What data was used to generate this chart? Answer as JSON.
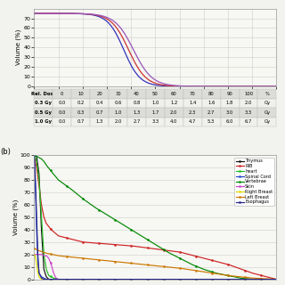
{
  "panel_a": {
    "ylabel": "Volume (%)",
    "ylim": [
      0,
      80
    ],
    "yticks": [
      0,
      10,
      20,
      30,
      40,
      50,
      60,
      70
    ],
    "xlim": [
      0,
      100
    ],
    "xticks": [
      0,
      10,
      20,
      30,
      40,
      50,
      60,
      70,
      80,
      90,
      100
    ],
    "curves": [
      {
        "color": "#3333bb",
        "midpoint": 37,
        "steep": 0.3
      },
      {
        "color": "#cc3333",
        "midpoint": 39,
        "steep": 0.28
      },
      {
        "color": "#9955bb",
        "midpoint": 41,
        "steep": 0.26
      }
    ]
  },
  "table_data": [
    [
      "Rel. Dose",
      "0",
      "10",
      "20",
      "30",
      "40",
      "50",
      "60",
      "70",
      "80",
      "90",
      "100",
      "%"
    ],
    [
      "0.3 Gy",
      "0.0",
      "0.2",
      "0.4",
      "0.6",
      "0.8",
      "1.0",
      "1.2",
      "1.4",
      "1.6",
      "1.8",
      "2.0",
      "Gy"
    ],
    [
      "0.5 Gy",
      "0.0",
      "0.3",
      "0.7",
      "1.0",
      "1.3",
      "1.7",
      "2.0",
      "2.3",
      "2.7",
      "3.0",
      "3.3",
      "Gy"
    ],
    [
      "1.0 Gy",
      "0.0",
      "0.7",
      "1.3",
      "2.0",
      "2.7",
      "3.3",
      "4.0",
      "4.7",
      "5.3",
      "6.0",
      "6.7",
      "Gy"
    ]
  ],
  "panel_b": {
    "label": "(b)",
    "ylabel": "Volume (%)",
    "ylim": [
      0,
      100
    ],
    "yticks": [
      0,
      10,
      20,
      30,
      40,
      50,
      60,
      70,
      80,
      90,
      100
    ],
    "curves": {
      "Thymus": {
        "color": "#111111",
        "points": [
          [
            0,
            100
          ],
          [
            1,
            99
          ],
          [
            2,
            85
          ],
          [
            3,
            40
          ],
          [
            4,
            8
          ],
          [
            5,
            2
          ],
          [
            6,
            0
          ],
          [
            100,
            0
          ]
        ]
      },
      "RIB": {
        "color": "#cc2222",
        "points": [
          [
            0,
            100
          ],
          [
            1,
            90
          ],
          [
            2,
            75
          ],
          [
            3,
            60
          ],
          [
            4,
            50
          ],
          [
            5,
            45
          ],
          [
            7,
            40
          ],
          [
            10,
            35
          ],
          [
            20,
            30
          ],
          [
            40,
            27
          ],
          [
            60,
            22
          ],
          [
            80,
            12
          ],
          [
            90,
            5
          ],
          [
            100,
            0
          ]
        ]
      },
      "heart": {
        "color": "#22bb22",
        "points": [
          [
            0,
            100
          ],
          [
            1,
            95
          ],
          [
            2,
            80
          ],
          [
            3,
            50
          ],
          [
            4,
            20
          ],
          [
            5,
            8
          ],
          [
            6,
            3
          ],
          [
            8,
            1
          ],
          [
            10,
            0
          ],
          [
            100,
            0
          ]
        ]
      },
      "Spinal Cord": {
        "color": "#2244cc",
        "points": [
          [
            0,
            100
          ],
          [
            0.5,
            75
          ],
          [
            1,
            40
          ],
          [
            1.5,
            15
          ],
          [
            2,
            5
          ],
          [
            3,
            2
          ],
          [
            4,
            1
          ],
          [
            5,
            0
          ],
          [
            100,
            0
          ]
        ]
      },
      "Vertebrae": {
        "color": "#008800",
        "points": [
          [
            0,
            100
          ],
          [
            1,
            99
          ],
          [
            2,
            98
          ],
          [
            3,
            97
          ],
          [
            4,
            95
          ],
          [
            5,
            92
          ],
          [
            7,
            87
          ],
          [
            10,
            80
          ],
          [
            15,
            73
          ],
          [
            20,
            65
          ],
          [
            25,
            58
          ],
          [
            30,
            52
          ],
          [
            35,
            46
          ],
          [
            40,
            40
          ],
          [
            45,
            34
          ],
          [
            50,
            28
          ],
          [
            55,
            22
          ],
          [
            60,
            17
          ],
          [
            65,
            12
          ],
          [
            70,
            8
          ],
          [
            75,
            5
          ],
          [
            80,
            3
          ],
          [
            85,
            1
          ],
          [
            90,
            0
          ],
          [
            100,
            0
          ]
        ]
      },
      "Skin": {
        "color": "#cc44cc",
        "points": [
          [
            0,
            20
          ],
          [
            1,
            20
          ],
          [
            2,
            20
          ],
          [
            3,
            20
          ],
          [
            4,
            19
          ],
          [
            5,
            19
          ],
          [
            6,
            17
          ],
          [
            7,
            12
          ],
          [
            8,
            5
          ],
          [
            9,
            1
          ],
          [
            10,
            0
          ],
          [
            100,
            0
          ]
        ]
      },
      "Right Breast": {
        "color": "#dddd00",
        "points": [
          [
            0,
            20
          ],
          [
            0.5,
            18
          ],
          [
            1,
            12
          ],
          [
            1.5,
            6
          ],
          [
            2,
            2
          ],
          [
            3,
            0
          ],
          [
            100,
            0
          ]
        ]
      },
      "Left Breast": {
        "color": "#cc7700",
        "points": [
          [
            0,
            25
          ],
          [
            2,
            23
          ],
          [
            5,
            21
          ],
          [
            10,
            19
          ],
          [
            20,
            17
          ],
          [
            30,
            15
          ],
          [
            40,
            13
          ],
          [
            50,
            11
          ],
          [
            60,
            9
          ],
          [
            70,
            6
          ],
          [
            80,
            3
          ],
          [
            90,
            1
          ],
          [
            100,
            0
          ]
        ]
      },
      "Esophagus": {
        "color": "#222288",
        "points": [
          [
            0,
            100
          ],
          [
            0.5,
            80
          ],
          [
            1,
            50
          ],
          [
            1.5,
            20
          ],
          [
            2,
            5
          ],
          [
            3,
            1
          ],
          [
            4,
            0
          ],
          [
            100,
            0
          ]
        ]
      }
    },
    "legend_order": [
      "Thymus",
      "RIB",
      "heart",
      "Spinal Cord",
      "Vertebrae",
      "Skin",
      "Right Breast",
      "Left Breast",
      "Esophagus"
    ]
  },
  "bg_color": "#f2f2ee",
  "plot_bg": "#f7f7f3",
  "grid_color": "#cccccc",
  "grid_lw": 0.4
}
